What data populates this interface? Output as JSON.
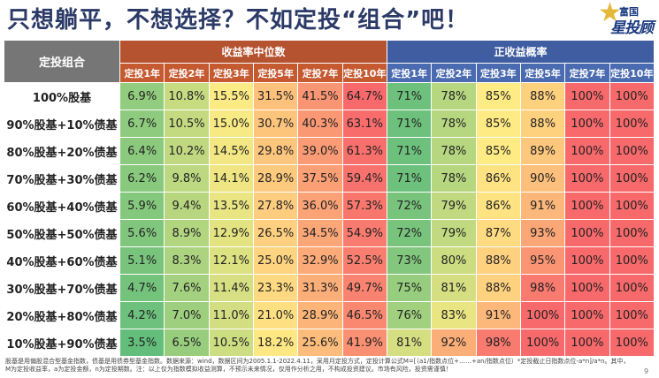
{
  "title": "只想躺平，不想选择？不如定投“组合”吧！",
  "logo": {
    "line1": "富国",
    "line2": "星投顾"
  },
  "table": {
    "corner": "定投组合",
    "group_median": "收益率中位数",
    "group_prob": "正收益概率",
    "periods": [
      "定投1年",
      "定投2年",
      "定投3年",
      "定投5年",
      "定投7年",
      "定投10年"
    ],
    "rows": [
      {
        "label": "100%股基",
        "median": [
          "6.9%",
          "10.8%",
          "15.5%",
          "31.5%",
          "41.5%",
          "64.7%"
        ],
        "prob": [
          "71%",
          "78%",
          "85%",
          "88%",
          "100%",
          "100%"
        ]
      },
      {
        "label": "90%股基+10%债基",
        "median": [
          "6.7%",
          "10.5%",
          "15.0%",
          "30.7%",
          "40.3%",
          "63.1%"
        ],
        "prob": [
          "71%",
          "78%",
          "85%",
          "88%",
          "100%",
          "100%"
        ]
      },
      {
        "label": "80%股基+20%债基",
        "median": [
          "6.4%",
          "10.2%",
          "14.5%",
          "29.8%",
          "39.0%",
          "61.3%"
        ],
        "prob": [
          "71%",
          "78%",
          "85%",
          "89%",
          "100%",
          "100%"
        ]
      },
      {
        "label": "70%股基+30%债基",
        "median": [
          "6.2%",
          "9.8%",
          "14.1%",
          "28.9%",
          "37.5%",
          "59.4%"
        ],
        "prob": [
          "71%",
          "78%",
          "86%",
          "90%",
          "100%",
          "100%"
        ]
      },
      {
        "label": "60%股基+40%债基",
        "median": [
          "5.9%",
          "9.4%",
          "13.5%",
          "27.8%",
          "36.0%",
          "57.3%"
        ],
        "prob": [
          "72%",
          "79%",
          "86%",
          "91%",
          "100%",
          "100%"
        ]
      },
      {
        "label": "50%股基+50%债基",
        "median": [
          "5.6%",
          "8.9%",
          "12.9%",
          "26.5%",
          "34.5%",
          "54.9%"
        ],
        "prob": [
          "72%",
          "79%",
          "87%",
          "93%",
          "100%",
          "100%"
        ]
      },
      {
        "label": "40%股基+60%债基",
        "median": [
          "5.1%",
          "8.3%",
          "12.1%",
          "25.0%",
          "32.9%",
          "52.5%"
        ],
        "prob": [
          "73%",
          "80%",
          "88%",
          "95%",
          "100%",
          "100%"
        ]
      },
      {
        "label": "30%股基+70%债基",
        "median": [
          "4.7%",
          "7.6%",
          "11.4%",
          "23.3%",
          "31.3%",
          "49.7%"
        ],
        "prob": [
          "75%",
          "81%",
          "88%",
          "98%",
          "100%",
          "100%"
        ]
      },
      {
        "label": "20%股基+80%债基",
        "median": [
          "4.2%",
          "7.0%",
          "11.0%",
          "21.0%",
          "28.9%",
          "46.5%"
        ],
        "prob": [
          "76%",
          "83%",
          "91%",
          "100%",
          "100%",
          "100%"
        ]
      },
      {
        "label": "10%股基+90%债基",
        "median": [
          "3.5%",
          "6.5%",
          "10.5%",
          "18.2%",
          "25.6%",
          "41.9%"
        ],
        "prob": [
          "81%",
          "92%",
          "98%",
          "100%",
          "100%",
          "100%"
        ]
      }
    ]
  },
  "colors": {
    "low": "#63be7b",
    "mid": "#ffeb84",
    "high": "#f8696b"
  },
  "footer": "股基是用偏股混合型基金指数，债基是用债券型基金指数。数据来源：wind，数据区间为2005.1.1-2022.4.11，采用月定投方式，定投计算公式M=[（a1/指数点位+……+an/指数点位）*定投截止日指数点位-a*n]/a*n。其中，M为定投收益率，a为定投金额，n为定投期数。注：以上仅为指数模拟收益测算，不预示未来情况，仅用作分析之用，不构成投资建议。市场有风险，投资需谨慎！",
  "page_number": "9"
}
